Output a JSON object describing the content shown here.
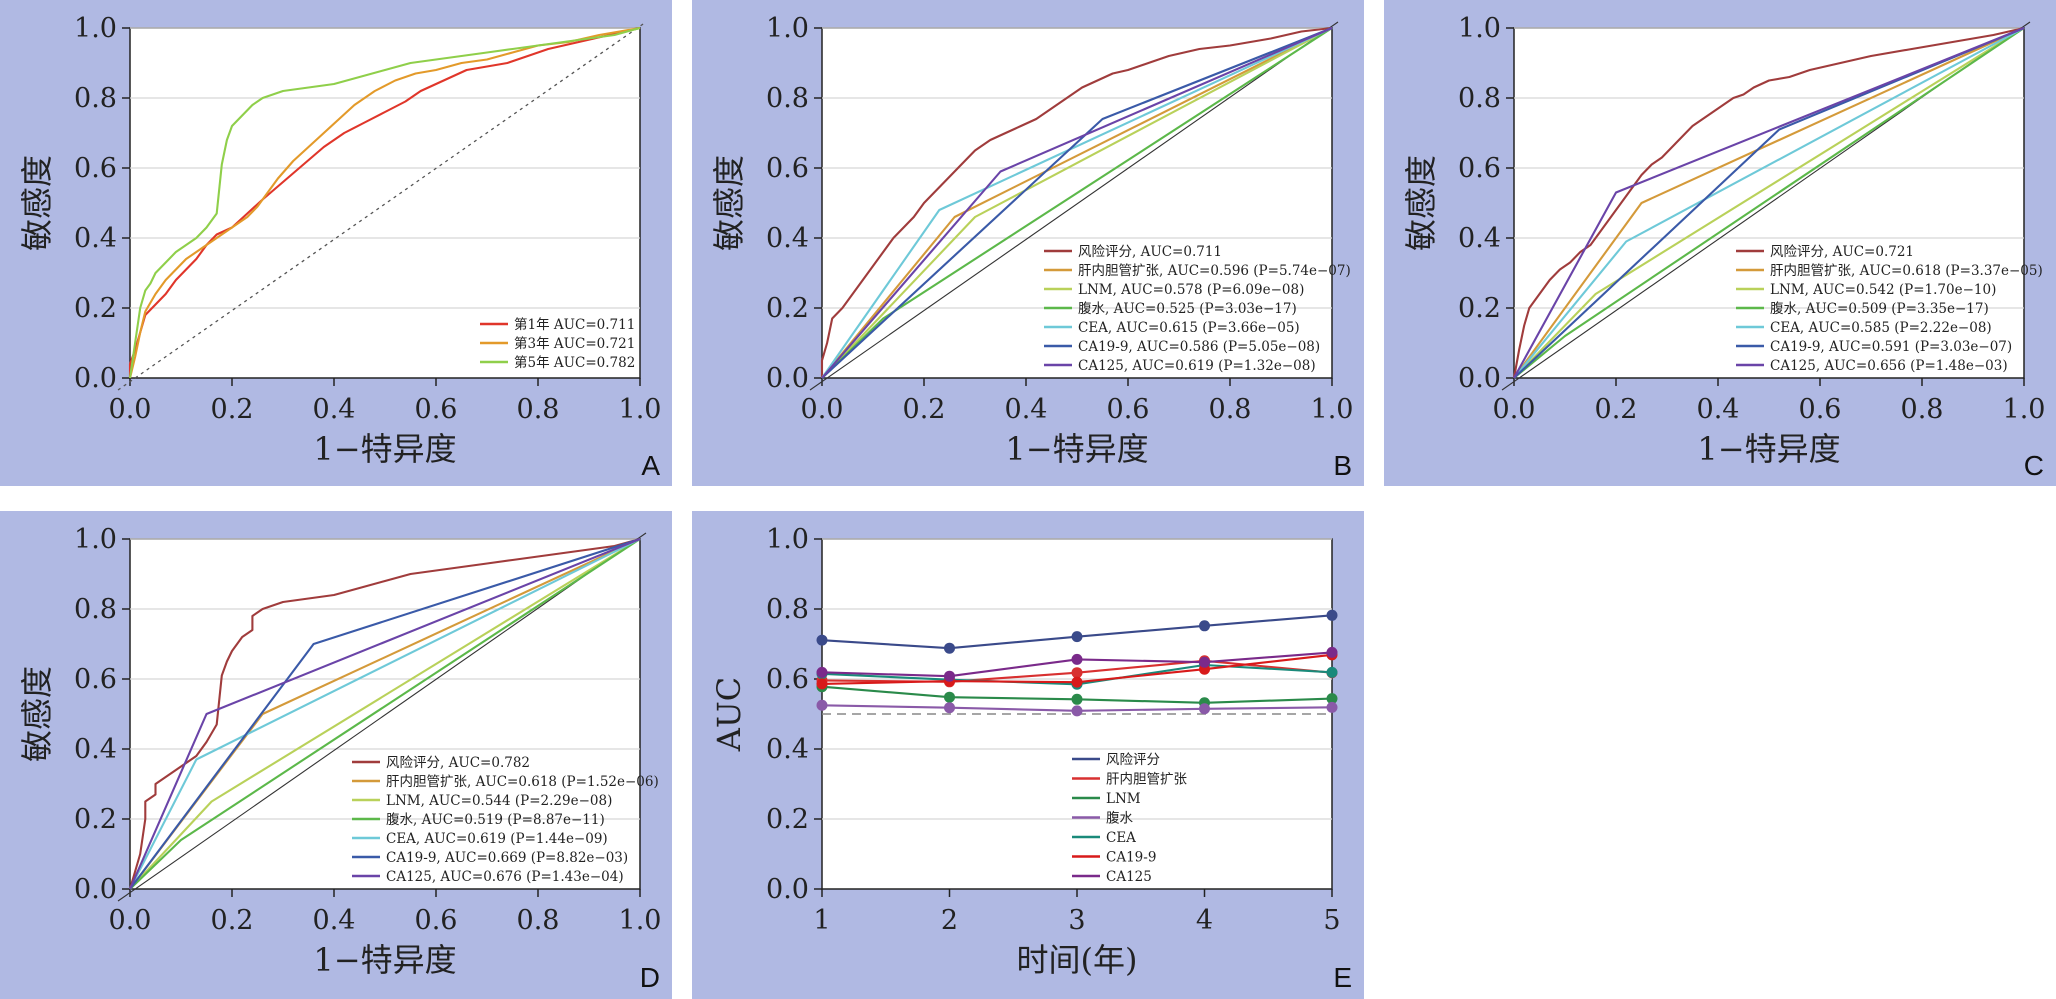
{
  "colors": {
    "panel_bg": "#b0b9e3",
    "risk": "#a03c3c",
    "dilation": "#d49a3a",
    "lnm": "#b9d15a",
    "ascites": "#5cb84a",
    "cea": "#6ec9d8",
    "ca199": "#3a5aa8",
    "ca125": "#6a44a8",
    "year1": "#e0362a",
    "year3": "#e39a2a",
    "year5": "#8fcf4a",
    "e_risk": "#3a4a8a",
    "e_dilation": "#d83030",
    "e_lnm": "#2a8a4a",
    "e_ascites": "#8a5aa8",
    "e_cea": "#1a8a7a",
    "e_ca199": "#d81a1a",
    "e_ca125": "#7a2a8a"
  },
  "chart_data": [
    {
      "panel": "A",
      "type": "line",
      "xlabel": "1−特异度",
      "ylabel": "敏感度",
      "xlim": [
        0,
        1
      ],
      "ylim": [
        0,
        1
      ],
      "xticks": [
        "0.0",
        "0.2",
        "0.4",
        "0.6",
        "0.8",
        "1.0"
      ],
      "yticks": [
        "0.0",
        "0.2",
        "0.4",
        "0.6",
        "0.8",
        "1.0"
      ],
      "grid": true,
      "reference_line": "dotted",
      "legend_position": "bottom-right",
      "series": [
        {
          "name": "第1年 AUC=0.711",
          "color_key": "year1",
          "x": [
            0,
            0,
            0.01,
            0.02,
            0.03,
            0.05,
            0.07,
            0.09,
            0.11,
            0.13,
            0.15,
            0.17,
            0.2,
            0.23,
            0.26,
            0.3,
            0.34,
            0.38,
            0.42,
            0.46,
            0.5,
            0.54,
            0.57,
            0.6,
            0.63,
            0.66,
            0.7,
            0.74,
            0.78,
            0.82,
            0.88,
            0.94,
            1
          ],
          "y": [
            0,
            0.04,
            0.08,
            0.13,
            0.18,
            0.21,
            0.24,
            0.28,
            0.31,
            0.34,
            0.38,
            0.41,
            0.43,
            0.47,
            0.51,
            0.56,
            0.61,
            0.66,
            0.7,
            0.73,
            0.76,
            0.79,
            0.82,
            0.84,
            0.86,
            0.88,
            0.89,
            0.9,
            0.92,
            0.94,
            0.96,
            0.98,
            1
          ]
        },
        {
          "name": "第3年 AUC=0.721",
          "color_key": "year3",
          "x": [
            0,
            0.01,
            0.02,
            0.03,
            0.05,
            0.07,
            0.09,
            0.11,
            0.13,
            0.15,
            0.17,
            0.19,
            0.21,
            0.23,
            0.25,
            0.27,
            0.29,
            0.32,
            0.35,
            0.38,
            0.41,
            0.44,
            0.48,
            0.52,
            0.56,
            0.6,
            0.65,
            0.7,
            0.75,
            0.8,
            0.86,
            0.92,
            1
          ],
          "y": [
            0,
            0.06,
            0.13,
            0.19,
            0.24,
            0.28,
            0.31,
            0.34,
            0.36,
            0.38,
            0.4,
            0.42,
            0.44,
            0.46,
            0.49,
            0.53,
            0.57,
            0.62,
            0.66,
            0.7,
            0.74,
            0.78,
            0.82,
            0.85,
            0.87,
            0.88,
            0.9,
            0.91,
            0.93,
            0.95,
            0.96,
            0.98,
            1
          ]
        },
        {
          "name": "第5年 AUC=0.782",
          "color_key": "year5",
          "x": [
            0,
            0.01,
            0.02,
            0.03,
            0.04,
            0.05,
            0.07,
            0.09,
            0.11,
            0.13,
            0.15,
            0.17,
            0.18,
            0.19,
            0.2,
            0.22,
            0.24,
            0.26,
            0.3,
            0.35,
            0.4,
            0.45,
            0.5,
            0.55,
            0.6,
            0.65,
            0.7,
            0.75,
            0.8,
            0.85,
            0.9,
            0.95,
            1
          ],
          "y": [
            0,
            0.1,
            0.2,
            0.25,
            0.27,
            0.3,
            0.33,
            0.36,
            0.38,
            0.4,
            0.43,
            0.47,
            0.61,
            0.68,
            0.72,
            0.75,
            0.78,
            0.8,
            0.82,
            0.83,
            0.84,
            0.86,
            0.88,
            0.9,
            0.91,
            0.92,
            0.93,
            0.94,
            0.95,
            0.96,
            0.97,
            0.98,
            1
          ]
        }
      ]
    },
    {
      "panel": "B",
      "type": "line",
      "xlabel": "1−特异度",
      "ylabel": "敏感度",
      "xlim": [
        0,
        1
      ],
      "ylim": [
        0,
        1
      ],
      "xticks": [
        "0.0",
        "0.2",
        "0.4",
        "0.6",
        "0.8",
        "1.0"
      ],
      "yticks": [
        "0.0",
        "0.2",
        "0.4",
        "0.6",
        "0.8",
        "1.0"
      ],
      "grid": true,
      "reference_line": "solid",
      "legend_position": "bottom-right",
      "series": [
        {
          "name": "风险评分, AUC=0.711",
          "color_key": "risk",
          "x": [
            0,
            0,
            0.01,
            0.02,
            0.04,
            0.06,
            0.08,
            0.1,
            0.12,
            0.14,
            0.16,
            0.18,
            0.2,
            0.22,
            0.24,
            0.26,
            0.28,
            0.3,
            0.33,
            0.36,
            0.39,
            0.42,
            0.45,
            0.48,
            0.51,
            0.54,
            0.57,
            0.6,
            0.64,
            0.68,
            0.74,
            0.8,
            0.88,
            0.94,
            1
          ],
          "y": [
            0,
            0.05,
            0.1,
            0.17,
            0.2,
            0.24,
            0.28,
            0.32,
            0.36,
            0.4,
            0.43,
            0.46,
            0.5,
            0.53,
            0.56,
            0.59,
            0.62,
            0.65,
            0.68,
            0.7,
            0.72,
            0.74,
            0.77,
            0.8,
            0.83,
            0.85,
            0.87,
            0.88,
            0.9,
            0.92,
            0.94,
            0.95,
            0.97,
            0.99,
            1
          ]
        },
        {
          "name": "肝内胆管扩张, AUC=0.596 (P=5.74e−07)",
          "color_key": "dilation",
          "x": [
            0,
            0.26,
            1
          ],
          "y": [
            0,
            0.46,
            1
          ]
        },
        {
          "name": "LNM, AUC=0.578 (P=6.09e−08)",
          "color_key": "lnm",
          "x": [
            0,
            0.3,
            1
          ],
          "y": [
            0,
            0.46,
            1
          ]
        },
        {
          "name": "腹水, AUC=0.525 (P=3.03e−17)",
          "color_key": "ascites",
          "x": [
            0,
            0.12,
            1
          ],
          "y": [
            0,
            0.17,
            1
          ]
        },
        {
          "name": "CEA, AUC=0.615 (P=3.66e−05)",
          "color_key": "cea",
          "x": [
            0,
            0.23,
            1
          ],
          "y": [
            0,
            0.48,
            1
          ]
        },
        {
          "name": "CA19-9, AUC=0.586 (P=5.05e−08)",
          "color_key": "ca199",
          "x": [
            0,
            0.55,
            1
          ],
          "y": [
            0,
            0.74,
            1
          ]
        },
        {
          "name": "CA125, AUC=0.619 (P=1.32e−08)",
          "color_key": "ca125",
          "x": [
            0,
            0.35,
            1
          ],
          "y": [
            0,
            0.59,
            1
          ]
        }
      ]
    },
    {
      "panel": "C",
      "type": "line",
      "xlabel": "1−特异度",
      "ylabel": "敏感度",
      "xlim": [
        0,
        1
      ],
      "ylim": [
        0,
        1
      ],
      "xticks": [
        "0.0",
        "0.2",
        "0.4",
        "0.6",
        "0.8",
        "1.0"
      ],
      "yticks": [
        "0.0",
        "0.2",
        "0.4",
        "0.6",
        "0.8",
        "1.0"
      ],
      "grid": true,
      "reference_line": "solid",
      "legend_position": "bottom-right",
      "series": [
        {
          "name": "风险评分, AUC=0.721",
          "color_key": "risk",
          "x": [
            0,
            0.01,
            0.02,
            0.03,
            0.05,
            0.07,
            0.09,
            0.11,
            0.13,
            0.15,
            0.17,
            0.19,
            0.21,
            0.23,
            0.25,
            0.27,
            0.29,
            0.31,
            0.33,
            0.35,
            0.37,
            0.39,
            0.41,
            0.43,
            0.45,
            0.47,
            0.5,
            0.54,
            0.58,
            0.64,
            0.7,
            0.78,
            0.86,
            0.94,
            1
          ],
          "y": [
            0,
            0.08,
            0.15,
            0.2,
            0.24,
            0.28,
            0.31,
            0.33,
            0.36,
            0.38,
            0.42,
            0.46,
            0.5,
            0.54,
            0.58,
            0.61,
            0.63,
            0.66,
            0.69,
            0.72,
            0.74,
            0.76,
            0.78,
            0.8,
            0.81,
            0.83,
            0.85,
            0.86,
            0.88,
            0.9,
            0.92,
            0.94,
            0.96,
            0.98,
            1
          ]
        },
        {
          "name": "肝内胆管扩张, AUC=0.618 (P=3.37e−05)",
          "color_key": "dilation",
          "x": [
            0,
            0.25,
            1
          ],
          "y": [
            0,
            0.5,
            1
          ]
        },
        {
          "name": "LNM, AUC=0.542 (P=1.70e−10)",
          "color_key": "lnm",
          "x": [
            0,
            0.16,
            1
          ],
          "y": [
            0,
            0.24,
            1
          ]
        },
        {
          "name": "腹水, AUC=0.509 (P=3.35e−17)",
          "color_key": "ascites",
          "x": [
            0,
            0.1,
            1
          ],
          "y": [
            0,
            0.12,
            1
          ]
        },
        {
          "name": "CEA, AUC=0.585 (P=2.22e−08)",
          "color_key": "cea",
          "x": [
            0,
            0.22,
            1
          ],
          "y": [
            0,
            0.39,
            1
          ]
        },
        {
          "name": "CA19-9, AUC=0.591 (P=3.03e−07)",
          "color_key": "ca199",
          "x": [
            0,
            0.52,
            1
          ],
          "y": [
            0,
            0.71,
            1
          ]
        },
        {
          "name": "CA125, AUC=0.656 (P=1.48e−03)",
          "color_key": "ca125",
          "x": [
            0,
            0.2,
            1
          ],
          "y": [
            0,
            0.53,
            1
          ]
        }
      ]
    },
    {
      "panel": "D",
      "type": "line",
      "xlabel": "1−特异度",
      "ylabel": "敏感度",
      "xlim": [
        0,
        1
      ],
      "ylim": [
        0,
        1
      ],
      "xticks": [
        "0.0",
        "0.2",
        "0.4",
        "0.6",
        "0.8",
        "1.0"
      ],
      "yticks": [
        "0.0",
        "0.2",
        "0.4",
        "0.6",
        "0.8",
        "1.0"
      ],
      "grid": true,
      "reference_line": "solid",
      "legend_position": "bottom-right",
      "series": [
        {
          "name": "风险评分, AUC=0.782",
          "color_key": "risk",
          "x": [
            0,
            0.02,
            0.03,
            0.03,
            0.05,
            0.05,
            0.07,
            0.09,
            0.11,
            0.13,
            0.15,
            0.17,
            0.18,
            0.19,
            0.2,
            0.22,
            0.24,
            0.24,
            0.26,
            0.3,
            0.35,
            0.4,
            0.45,
            0.5,
            0.55,
            0.6,
            0.65,
            0.7,
            0.75,
            0.8,
            0.85,
            0.9,
            0.95,
            1
          ],
          "y": [
            0,
            0.1,
            0.2,
            0.25,
            0.27,
            0.3,
            0.32,
            0.34,
            0.36,
            0.38,
            0.42,
            0.47,
            0.61,
            0.65,
            0.68,
            0.72,
            0.74,
            0.78,
            0.8,
            0.82,
            0.83,
            0.84,
            0.86,
            0.88,
            0.9,
            0.91,
            0.92,
            0.93,
            0.94,
            0.95,
            0.96,
            0.97,
            0.98,
            1
          ]
        },
        {
          "name": "肝内胆管扩张, AUC=0.618 (P=1.52e−06)",
          "color_key": "dilation",
          "x": [
            0,
            0.26,
            1
          ],
          "y": [
            0,
            0.5,
            1
          ]
        },
        {
          "name": "LNM, AUC=0.544 (P=2.29e−08)",
          "color_key": "lnm",
          "x": [
            0,
            0.16,
            1
          ],
          "y": [
            0,
            0.25,
            1
          ]
        },
        {
          "name": "腹水, AUC=0.519 (P=8.87e−11)",
          "color_key": "ascites",
          "x": [
            0,
            0.1,
            1
          ],
          "y": [
            0,
            0.14,
            1
          ]
        },
        {
          "name": "CEA, AUC=0.619 (P=1.44e−09)",
          "color_key": "cea",
          "x": [
            0,
            0.13,
            1
          ],
          "y": [
            0,
            0.37,
            1
          ]
        },
        {
          "name": "CA19-9, AUC=0.669 (P=8.82e−03)",
          "color_key": "ca199",
          "x": [
            0,
            0.36,
            1
          ],
          "y": [
            0,
            0.7,
            1
          ]
        },
        {
          "name": "CA125, AUC=0.676 (P=1.43e−04)",
          "color_key": "ca125",
          "x": [
            0,
            0.15,
            1
          ],
          "y": [
            0,
            0.5,
            1
          ]
        }
      ]
    },
    {
      "panel": "E",
      "type": "line",
      "xlabel": "时间(年)",
      "ylabel": "AUC",
      "xlim": [
        1,
        5
      ],
      "ylim": [
        0,
        1
      ],
      "xticks": [
        "1",
        "2",
        "3",
        "4",
        "5"
      ],
      "yticks": [
        "0.0",
        "0.2",
        "0.4",
        "0.6",
        "0.8",
        "1.0"
      ],
      "grid": true,
      "reference_line": "dashed y=0.5",
      "legend_position": "bottom-right",
      "x": [
        1,
        2,
        3,
        4,
        5
      ],
      "series": [
        {
          "name": "风险评分",
          "color_key": "e_risk",
          "values": [
            0.711,
            0.688,
            0.721,
            0.752,
            0.782
          ]
        },
        {
          "name": "肝内胆管扩张",
          "color_key": "e_dilation",
          "values": [
            0.596,
            0.592,
            0.618,
            0.652,
            0.618
          ]
        },
        {
          "name": "LNM",
          "color_key": "e_lnm",
          "values": [
            0.578,
            0.548,
            0.542,
            0.532,
            0.544
          ]
        },
        {
          "name": "腹水",
          "color_key": "e_ascites",
          "values": [
            0.525,
            0.518,
            0.509,
            0.515,
            0.519
          ]
        },
        {
          "name": "CEA",
          "color_key": "e_cea",
          "values": [
            0.615,
            0.598,
            0.585,
            0.64,
            0.619
          ]
        },
        {
          "name": "CA19-9",
          "color_key": "e_ca199",
          "values": [
            0.586,
            0.594,
            0.591,
            0.628,
            0.669
          ]
        },
        {
          "name": "CA125",
          "color_key": "e_ca125",
          "values": [
            0.619,
            0.608,
            0.656,
            0.648,
            0.676
          ]
        }
      ]
    }
  ]
}
